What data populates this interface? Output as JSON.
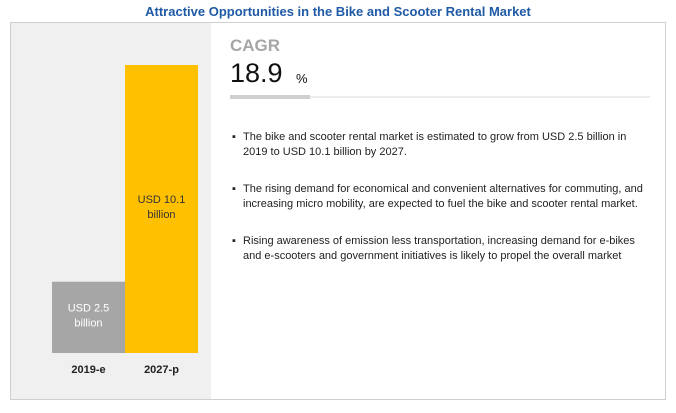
{
  "title": "Attractive Opportunities in the Bike and Scooter Rental Market",
  "cagr": {
    "label": "CAGR",
    "value": "18.9",
    "unit": "%"
  },
  "bullet_glyph": "▪",
  "bullets": [
    "The bike and scooter rental market is estimated to grow from USD 2.5 billion in 2019  to USD 10.1 billion by 2027.",
    "The rising demand for economical and convenient alternatives for commuting, and increasing micro mobility, are expected to fuel the bike and scooter rental market.",
    "Rising awareness of emission less transportation, increasing demand for e-bikes and e-scooters and government initiatives is likely to propel the overall market"
  ],
  "colors": {
    "bar_2019": "#a6a6a6",
    "bar_2027": "#ffc000",
    "title": "#1f5aa6",
    "panel": "#f0f0f0"
  },
  "chart_data": {
    "type": "bar",
    "categories": [
      "2019-e",
      "2027-p"
    ],
    "values": [
      2.5,
      10.1
    ],
    "bar_labels": [
      "USD 2.5 billion",
      "USD 10.1 billion"
    ],
    "ylim": [
      0,
      10.1
    ],
    "grid": false,
    "legend": "none"
  }
}
